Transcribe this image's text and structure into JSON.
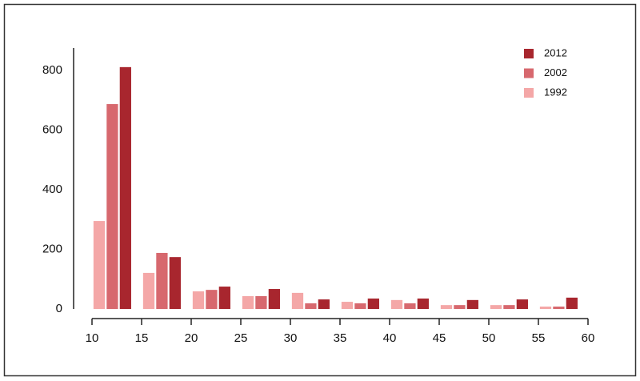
{
  "chart_data": {
    "type": "histogram",
    "bins": [
      10,
      15,
      20,
      25,
      30,
      35,
      40,
      45,
      50,
      55,
      60
    ],
    "series": [
      {
        "name": "1992",
        "color": "#f4a7a7",
        "values": [
          295,
          121,
          59,
          43,
          54,
          24,
          30,
          13,
          13,
          8
        ]
      },
      {
        "name": "2002",
        "color": "#d7686e",
        "values": [
          687,
          188,
          64,
          43,
          19,
          19,
          19,
          13,
          13,
          8
        ]
      },
      {
        "name": "2012",
        "color": "#a8262e",
        "values": [
          811,
          174,
          75,
          67,
          32,
          35,
          35,
          30,
          32,
          38
        ]
      }
    ],
    "xlim": [
      10,
      60
    ],
    "xticks": [
      10,
      15,
      20,
      25,
      30,
      35,
      40,
      45,
      50,
      55,
      60
    ],
    "ylim": [
      0,
      875
    ],
    "yticks": [
      0,
      200,
      400,
      600,
      800
    ],
    "grid": false,
    "legend": "upper right"
  }
}
